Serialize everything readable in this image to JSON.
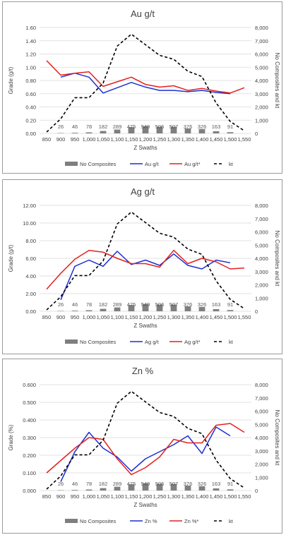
{
  "categories": [
    "850",
    "900",
    "950",
    "1,000",
    "1,050",
    "1,100",
    "1,150",
    "1,200",
    "1,250",
    "1,300",
    "1,350",
    "1,400",
    "1,450",
    "1,500",
    "1,550"
  ],
  "x_axis_label": "Z Swaths",
  "secondary_axis_label": "No Composites and kt",
  "colors": {
    "bars": "#7f7f7f",
    "series_blue": "#1f2fd1",
    "series_red": "#e3211c",
    "kt": "#000000",
    "grid": "#d9d9d9"
  },
  "chart_data": [
    {
      "type": "bar+line",
      "title": "Au g/t",
      "ylabel": "Grade (g/t)",
      "ylabel2": "No Composites and kt",
      "xlabel": "Z Swaths",
      "ylim": [
        0,
        1.6
      ],
      "y_ticks": [
        "0.00",
        "0.20",
        "0.40",
        "0.60",
        "0.80",
        "1.00",
        "1.20",
        "1.40",
        "1.60"
      ],
      "y2lim": [
        0,
        8000
      ],
      "y2_ticks": [
        "0",
        "1,000",
        "2,000",
        "3,000",
        "4,000",
        "5,000",
        "6,000",
        "7,000",
        "8,000"
      ],
      "composites": [
        null,
        26,
        46,
        78,
        182,
        289,
        475,
        549,
        506,
        507,
        376,
        326,
        163,
        91,
        null
      ],
      "composite_labels": [
        "",
        "26",
        "46",
        "78",
        "182",
        "289",
        "475",
        "549",
        "506",
        "507",
        "376",
        "326",
        "163",
        "91",
        ""
      ],
      "series": [
        {
          "name": "Au g/t",
          "color": "#1f2fd1",
          "axis": "left",
          "values": [
            null,
            0.85,
            0.91,
            0.85,
            0.61,
            0.69,
            0.77,
            0.7,
            0.65,
            0.65,
            0.63,
            0.65,
            0.62,
            0.6,
            null
          ]
        },
        {
          "name": "Au g/t*",
          "color": "#e3211c",
          "axis": "left",
          "values": [
            1.1,
            0.88,
            0.91,
            0.93,
            0.71,
            0.78,
            0.85,
            0.74,
            0.7,
            0.72,
            0.65,
            0.68,
            0.64,
            0.61,
            0.69
          ]
        },
        {
          "name": "kt",
          "color": "#000000",
          "axis": "right",
          "dashed": true,
          "values": [
            100,
            1100,
            2700,
            2700,
            3800,
            6600,
            7500,
            6700,
            5900,
            5600,
            4700,
            4300,
            2300,
            900,
            200
          ]
        }
      ],
      "legend": [
        "No Composites",
        "Au g/t",
        "Au g/t*",
        "kt"
      ],
      "legend_position": "bottom"
    },
    {
      "type": "bar+line",
      "title": "Ag g/t",
      "ylabel": "Grade (g/t)",
      "ylabel2": "No Composites and kt",
      "xlabel": "Z Swaths",
      "ylim": [
        0,
        12
      ],
      "y_ticks": [
        "0.00",
        "2.00",
        "4.00",
        "6.00",
        "8.00",
        "10.00",
        "12.00"
      ],
      "y2lim": [
        0,
        8000
      ],
      "y2_ticks": [
        "0",
        "1,000",
        "2,000",
        "3,000",
        "4,000",
        "5,000",
        "6,000",
        "7,000",
        "8,000"
      ],
      "composites": [
        null,
        26,
        46,
        78,
        182,
        289,
        475,
        549,
        506,
        507,
        376,
        326,
        163,
        91,
        null
      ],
      "composite_labels": [
        "",
        "26",
        "46",
        "78",
        "182",
        "289",
        "475",
        "549",
        "506",
        "507",
        "376",
        "326",
        "163",
        "91",
        ""
      ],
      "series": [
        {
          "name": "Ag g/t",
          "color": "#1f2fd1",
          "axis": "left",
          "values": [
            null,
            1.3,
            5.1,
            5.8,
            5.1,
            6.8,
            5.3,
            5.8,
            5.2,
            6.5,
            5.2,
            4.8,
            5.8,
            5.5,
            null
          ]
        },
        {
          "name": "Ag g/t*",
          "color": "#e3211c",
          "axis": "left",
          "values": [
            2.5,
            4.3,
            5.9,
            6.9,
            6.7,
            6.0,
            5.4,
            5.4,
            5.0,
            6.9,
            5.4,
            6.0,
            5.6,
            4.8,
            4.9
          ]
        },
        {
          "name": "kt",
          "color": "#000000",
          "axis": "right",
          "dashed": true,
          "values": [
            100,
            1100,
            2700,
            2700,
            3800,
            6600,
            7500,
            6700,
            5900,
            5600,
            4700,
            4300,
            2300,
            900,
            200
          ]
        }
      ],
      "legend": [
        "No Composites",
        "Ag g/t",
        "Ag g/t*",
        "kt"
      ],
      "legend_position": "bottom"
    },
    {
      "type": "bar+line",
      "title": "Zn %",
      "ylabel": "Grade (%)",
      "ylabel2": "No Composites and kt",
      "xlabel": "Z Swaths",
      "ylim": [
        0,
        0.6
      ],
      "y_ticks": [
        "0.000",
        "0.100",
        "0.200",
        "0.300",
        "0.400",
        "0.500",
        "0.600"
      ],
      "y2lim": [
        0,
        8000
      ],
      "y2_ticks": [
        "0",
        "1,000",
        "2,000",
        "3,000",
        "4,000",
        "5,000",
        "6,000",
        "7,000",
        "8,000"
      ],
      "composites": [
        null,
        26,
        46,
        78,
        182,
        289,
        475,
        549,
        506,
        507,
        376,
        326,
        163,
        91,
        null
      ],
      "composite_labels": [
        "",
        "26",
        "46",
        "78",
        "182",
        "289",
        "475",
        "549",
        "506",
        "507",
        "376",
        "326",
        "163",
        "91",
        ""
      ],
      "series": [
        {
          "name": "Zn %",
          "color": "#1f2fd1",
          "axis": "left",
          "values": [
            null,
            0.05,
            0.22,
            0.33,
            0.24,
            0.19,
            0.11,
            0.18,
            0.22,
            0.26,
            0.31,
            0.21,
            0.36,
            0.31,
            null
          ]
        },
        {
          "name": "Zn %*",
          "color": "#e3211c",
          "axis": "left",
          "values": [
            0.1,
            0.17,
            0.24,
            0.3,
            0.29,
            0.18,
            0.09,
            0.13,
            0.19,
            0.29,
            0.27,
            0.27,
            0.37,
            0.38,
            0.33
          ]
        },
        {
          "name": "kt",
          "color": "#000000",
          "axis": "right",
          "dashed": true,
          "values": [
            100,
            1100,
            2700,
            2700,
            3800,
            6600,
            7500,
            6700,
            5900,
            5600,
            4700,
            4300,
            2300,
            900,
            200
          ]
        }
      ],
      "legend": [
        "No Composites",
        "Zn %",
        "Zn %*",
        "kt"
      ],
      "legend_position": "bottom"
    }
  ]
}
